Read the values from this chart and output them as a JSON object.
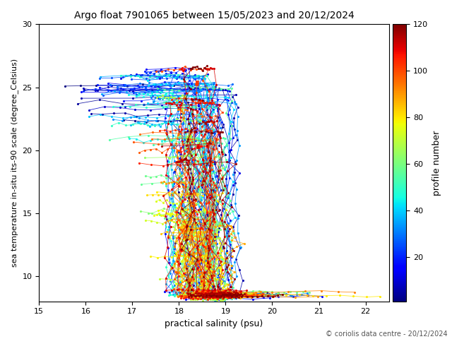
{
  "title": "Argo float 7901065 between 15/05/2023 and 20/12/2024",
  "xlabel": "practical salinity (psu)",
  "ylabel": "sea temperature in-situ its-90 scale (degree_Celsius)",
  "colorbar_label": "profile number",
  "xlim": [
    15,
    22.5
  ],
  "ylim": [
    8,
    30
  ],
  "xticks": [
    15,
    16,
    17,
    18,
    19,
    20,
    21,
    22
  ],
  "yticks": [
    10,
    15,
    20,
    25,
    30
  ],
  "cbar_ticks": [
    20,
    40,
    60,
    80,
    100,
    120
  ],
  "cbar_vmin": 1,
  "cbar_vmax": 120,
  "n_profiles": 120,
  "copyright": "© coriolis data centre - 20/12/2024",
  "colormap": "jet",
  "seed": 7
}
